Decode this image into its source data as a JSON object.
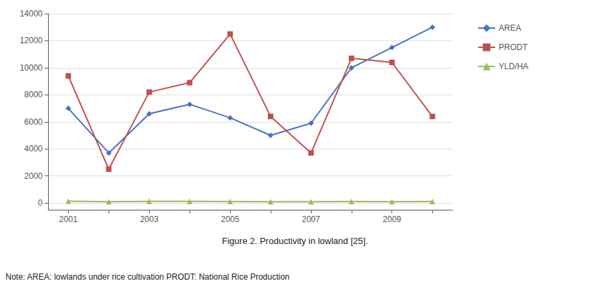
{
  "chart_data": {
    "type": "line",
    "x": [
      2001,
      2002,
      2003,
      2004,
      2005,
      2006,
      2007,
      2008,
      2009,
      2010
    ],
    "series": [
      {
        "name": "AREA",
        "color": "#4472C4",
        "marker": "diamond",
        "values": [
          7000,
          3700,
          6600,
          7300,
          6300,
          5000,
          5900,
          10000,
          11500,
          13000
        ]
      },
      {
        "name": "PRODT",
        "color": "#C0504D",
        "marker": "square",
        "values": [
          9400,
          2500,
          8200,
          8900,
          12500,
          6400,
          3700,
          10700,
          10400,
          6400
        ]
      },
      {
        "name": "YLD/HA",
        "color": "#9BBB59",
        "marker": "triangle",
        "values": [
          130,
          90,
          120,
          120,
          110,
          100,
          100,
          110,
          100,
          110
        ]
      }
    ],
    "xlim": [
      2000.5,
      2010.5
    ],
    "xticks": [
      2001,
      2003,
      2005,
      2007,
      2009
    ],
    "ylim": [
      -500,
      14000
    ],
    "yticks": [
      0,
      2000,
      4000,
      6000,
      8000,
      10000,
      12000,
      14000
    ],
    "grid": true,
    "legend": "right",
    "annotations": [
      "Figure 2. Productivity in lowland [25].",
      "Note: AREA: lowlands under rice cultivation PRODT: National Rice Production"
    ]
  }
}
